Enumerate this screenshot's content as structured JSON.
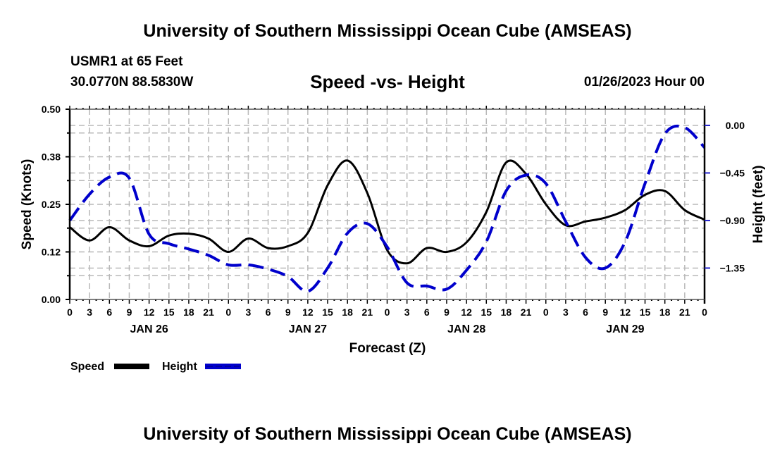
{
  "header": {
    "title": "University of Southern Mississippi Ocean Cube (AMSEAS)",
    "station": "USMR1 at 65 Feet",
    "coordinates": "30.0770N  88.5830W",
    "subtitle": "Speed -vs- Height",
    "datetime": "01/26/2023 Hour 00"
  },
  "footer": {
    "title": "University of Southern Mississippi Ocean Cube (AMSEAS)"
  },
  "chart_data": {
    "type": "line",
    "title": "Speed -vs- Height",
    "xlabel": "Forecast (Z)",
    "ylabel": "Speed (Knots)",
    "y2label": "Height (feet)",
    "x_units": "forecast hours from 01/26/2023 00Z",
    "xlim": [
      0,
      96
    ],
    "x_tick_labels": [
      "0",
      "3",
      "6",
      "9",
      "12",
      "15",
      "18",
      "21",
      "0",
      "3",
      "6",
      "9",
      "12",
      "15",
      "18",
      "21",
      "0",
      "3",
      "6",
      "9",
      "12",
      "15",
      "18",
      "21",
      "0",
      "3",
      "6",
      "9",
      "12",
      "15",
      "18",
      "21",
      "0"
    ],
    "day_labels": [
      {
        "label": "JAN 26",
        "hour": 12
      },
      {
        "label": "JAN 27",
        "hour": 36
      },
      {
        "label": "JAN 28",
        "hour": 60
      },
      {
        "label": "JAN 29",
        "hour": 84
      }
    ],
    "ylim": [
      0,
      0.5
    ],
    "y_ticks": [
      {
        "value": 0.0,
        "label": "0.00"
      },
      {
        "value": 0.125,
        "label": "0.12"
      },
      {
        "value": 0.25,
        "label": "0.25"
      },
      {
        "value": 0.375,
        "label": "0.38"
      },
      {
        "value": 0.5,
        "label": "0.50"
      }
    ],
    "y2lim": [
      -1.647,
      0.153
    ],
    "y2_ticks": [
      {
        "value": 0.0,
        "label": "0.00"
      },
      {
        "value": -0.45,
        "label": "−0.45"
      },
      {
        "value": -0.9,
        "label": "−0.90"
      },
      {
        "value": -1.35,
        "label": "−1.35"
      }
    ],
    "grid": true,
    "legend_position": "bottom-left",
    "x": [
      0,
      3,
      6,
      9,
      12,
      15,
      18,
      21,
      24,
      27,
      30,
      33,
      36,
      39,
      42,
      45,
      48,
      51,
      54,
      57,
      60,
      63,
      66,
      69,
      72,
      75,
      78,
      81,
      84,
      87,
      90,
      93,
      96
    ],
    "series": [
      {
        "name": "Speed",
        "axis": "left",
        "color": "#000000",
        "style": "solid",
        "values": [
          0.19,
          0.155,
          0.19,
          0.155,
          0.14,
          0.168,
          0.173,
          0.16,
          0.125,
          0.16,
          0.135,
          0.14,
          0.175,
          0.3,
          0.365,
          0.28,
          0.13,
          0.095,
          0.135,
          0.125,
          0.15,
          0.23,
          0.36,
          0.33,
          0.25,
          0.195,
          0.205,
          0.215,
          0.235,
          0.275,
          0.285,
          0.235,
          0.21
        ]
      },
      {
        "name": "Height",
        "axis": "right",
        "color": "#0000cc",
        "style": "dashed",
        "values": [
          -0.9,
          -0.65,
          -0.49,
          -0.5,
          -1.03,
          -1.12,
          -1.17,
          -1.23,
          -1.32,
          -1.32,
          -1.36,
          -1.43,
          -1.57,
          -1.35,
          -1.02,
          -0.93,
          -1.15,
          -1.49,
          -1.52,
          -1.55,
          -1.37,
          -1.1,
          -0.62,
          -0.47,
          -0.55,
          -0.91,
          -1.25,
          -1.35,
          -1.1,
          -0.55,
          -0.08,
          -0.02,
          -0.21
        ]
      }
    ]
  }
}
